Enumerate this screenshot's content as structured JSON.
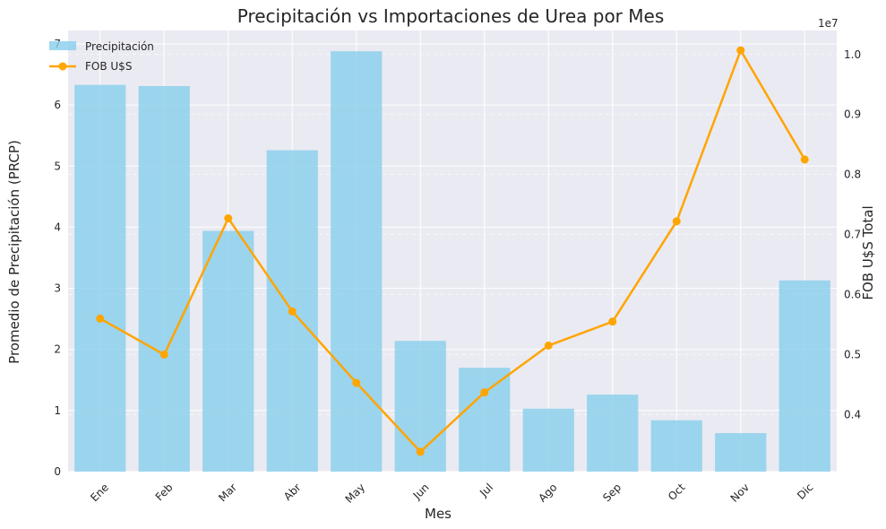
{
  "chart_data": {
    "type": "bar+line",
    "title": "Precipitación vs Importaciones de Urea por Mes",
    "xlabel": "Mes",
    "ylabel_left": "Promedio de Precipitación (PRCP)",
    "ylabel_right": "FOB U$S Total",
    "right_axis_offset_label": "1e7",
    "categories": [
      "Ene",
      "Feb",
      "Mar",
      "Abr",
      "May",
      "Jun",
      "Jul",
      "Ago",
      "Sep",
      "Oct",
      "Nov",
      "Dic"
    ],
    "series": [
      {
        "name": "Precipitación",
        "type": "bar",
        "axis": "left",
        "color": "#87ceeb",
        "values": [
          6.33,
          6.31,
          3.94,
          5.26,
          6.88,
          2.14,
          1.7,
          1.03,
          1.26,
          0.84,
          0.63,
          3.13
        ]
      },
      {
        "name": "FOB U$S",
        "type": "line",
        "axis": "right",
        "color": "#ffa500",
        "values": [
          0.56,
          0.5,
          0.727,
          0.572,
          0.453,
          0.338,
          0.437,
          0.515,
          0.555,
          0.722,
          1.007,
          0.825
        ]
      }
    ],
    "ylim_left": [
      0,
      7.22
    ],
    "yticks_left": [
      "0",
      "1",
      "2",
      "3",
      "4",
      "5",
      "6",
      "7"
    ],
    "ylim_right": [
      0.305,
      1.04
    ],
    "yticks_right": [
      "0.4",
      "0.5",
      "0.6",
      "0.7",
      "0.8",
      "0.9",
      "1.0"
    ],
    "grid": true,
    "legend_position": "top-left",
    "background_color": "#eaeaf2"
  }
}
